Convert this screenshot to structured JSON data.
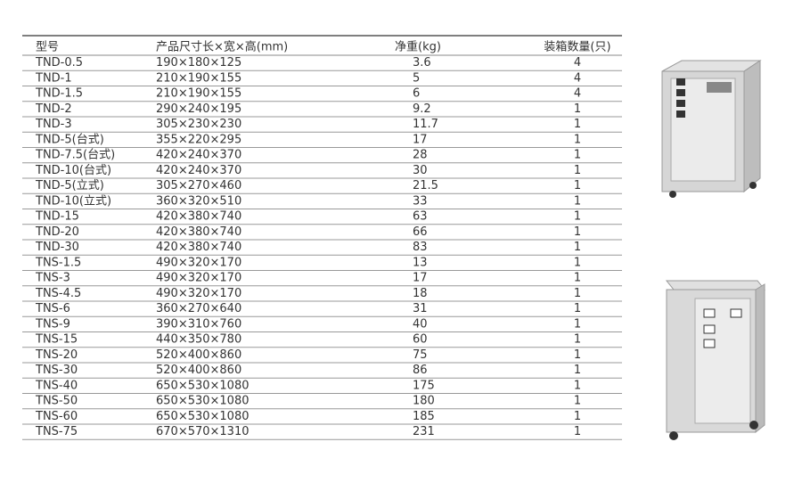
{
  "table": {
    "header": [
      "型号",
      "产品尺寸长×宽×高(mm)",
      "净重(kg)",
      "装箱数量(只)"
    ],
    "rows": [
      [
        "TND-0.5",
        "190×180×125",
        3.6,
        4
      ],
      [
        "TND-1",
        "210×190×155",
        5,
        4
      ],
      [
        "TND-1.5",
        "210×190×155",
        6,
        4
      ],
      [
        "TND-2",
        "290×240×195",
        9.2,
        1
      ],
      [
        "TND-3",
        "305×230×230",
        11.7,
        1
      ],
      [
        "TND-5(台式)",
        "355×220×295",
        17,
        1
      ],
      [
        "TND-7.5(台式)",
        "420×240×370",
        28,
        1
      ],
      [
        "TND-10(台式)",
        "420×240×370",
        30,
        1
      ],
      [
        "TND-5(立式)",
        "305×270×460",
        21.5,
        1
      ],
      [
        "TND-10(立式)",
        "360×320×510",
        33,
        1
      ],
      [
        "TND-15",
        "420×380×740",
        63,
        1
      ],
      [
        "TND-20",
        "420×380×740",
        66,
        1
      ],
      [
        "TND-30",
        "420×380×740",
        83,
        1
      ],
      [
        "TNS-1.5",
        "490×320×170",
        13,
        1
      ],
      [
        "TNS-3",
        "490×320×170",
        17,
        1
      ],
      [
        "TNS-4.5",
        "490×320×170",
        18,
        1
      ],
      [
        "TNS-6",
        "360×270×640",
        31,
        1
      ],
      [
        "TNS-9",
        "390×310×760",
        40,
        1
      ],
      [
        "TNS-15",
        "440×350×780",
        60,
        1
      ],
      [
        "TNS-20",
        "520×400×860",
        75,
        1
      ],
      [
        "TNS-30",
        "520×400×860",
        86,
        1
      ],
      [
        "TNS-40",
        "650×530×1080",
        175,
        1
      ],
      [
        "TNS-50",
        "650×530×1080",
        180,
        1
      ],
      [
        "TNS-60",
        "650×530×1080",
        185,
        1
      ],
      [
        "TNS-75",
        "670×570×1310",
        231,
        1
      ]
    ]
  }
}
